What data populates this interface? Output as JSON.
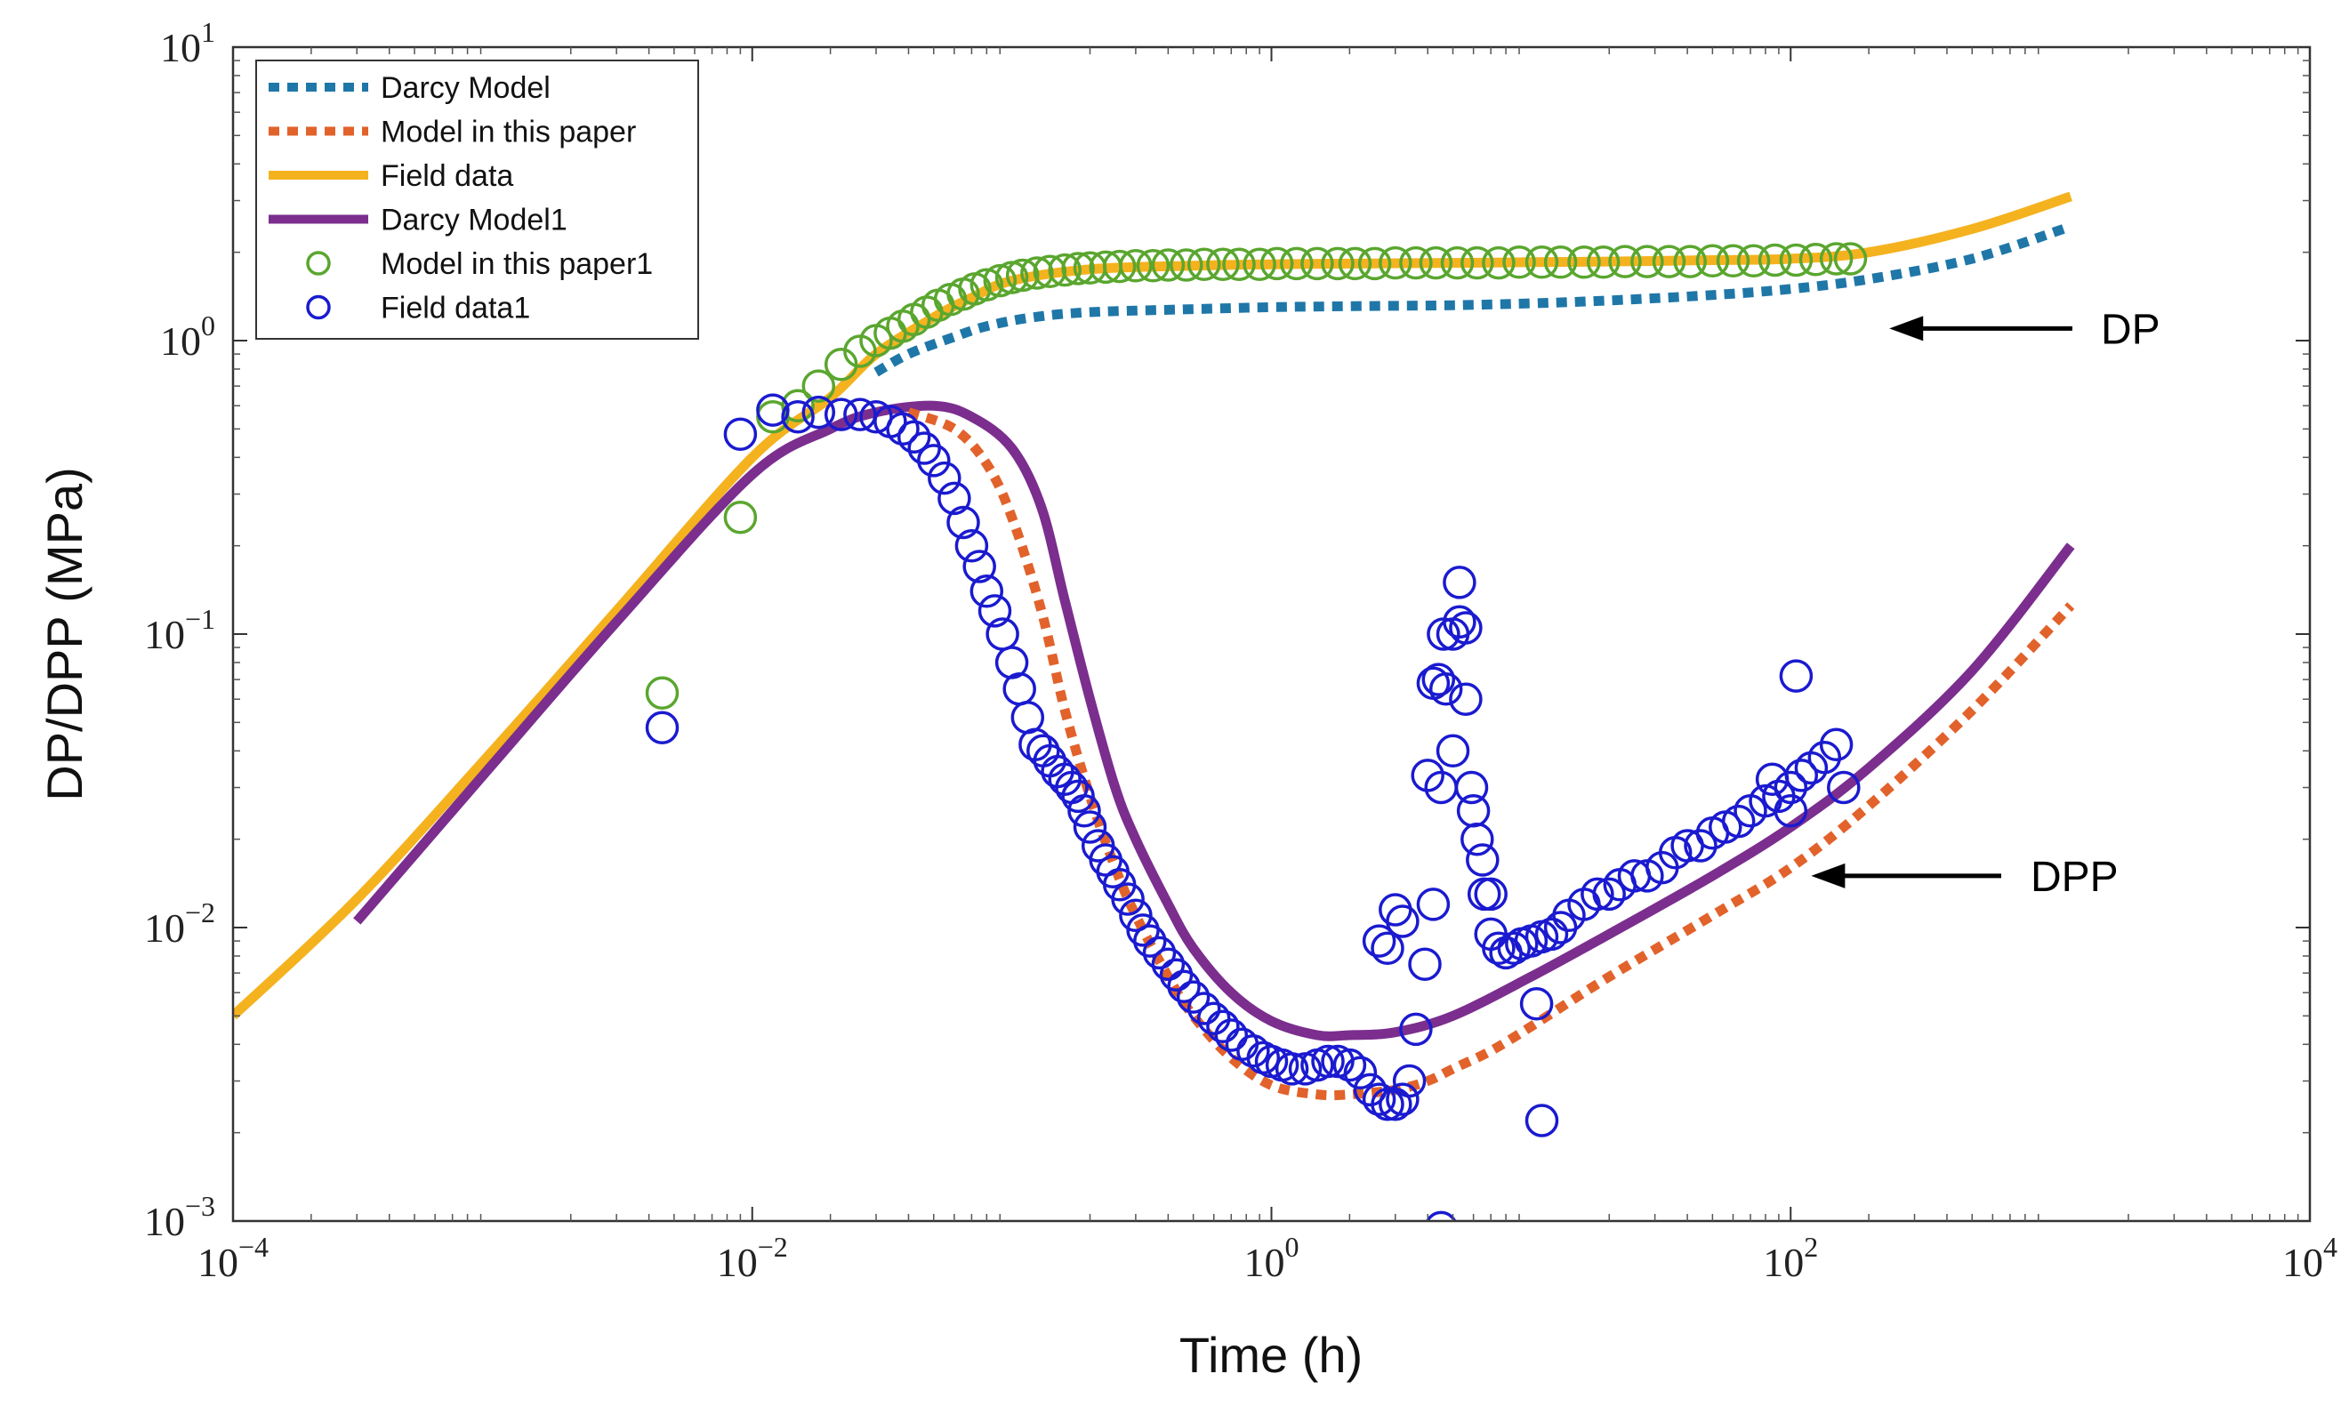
{
  "chart_data": {
    "type": "scatter",
    "title": "",
    "xlabel": "Time (h)",
    "ylabel": "DP/DPP (MPa)",
    "xscale": "log",
    "yscale": "log",
    "xlim": [
      0.0001,
      10000
    ],
    "ylim": [
      0.001,
      10
    ],
    "xticks": [
      {
        "value": 0.0001,
        "base": "10",
        "exp": "−4"
      },
      {
        "value": 0.01,
        "base": "10",
        "exp": "−2"
      },
      {
        "value": 1,
        "base": "10",
        "exp": "0"
      },
      {
        "value": 100,
        "base": "10",
        "exp": "2"
      },
      {
        "value": 10000,
        "base": "10",
        "exp": "4"
      }
    ],
    "yticks": [
      {
        "value": 0.001,
        "base": "10",
        "exp": "−3"
      },
      {
        "value": 0.01,
        "base": "10",
        "exp": "−2"
      },
      {
        "value": 0.1,
        "base": "10",
        "exp": "−1"
      },
      {
        "value": 1,
        "base": "10",
        "exp": "0"
      },
      {
        "value": 10,
        "base": "10",
        "exp": "1"
      }
    ],
    "grid": false,
    "legend_position": "top-left",
    "series": [
      {
        "name": "Darcy Model",
        "kind": "dotted-line",
        "color": "#1f77a8",
        "x": [
          0.03,
          0.04,
          0.06,
          0.08,
          0.12,
          0.2,
          0.5,
          1,
          2,
          5,
          10,
          20,
          50,
          100,
          200,
          500,
          1200
        ],
        "y": [
          0.78,
          0.9,
          1.03,
          1.12,
          1.2,
          1.25,
          1.28,
          1.3,
          1.31,
          1.32,
          1.34,
          1.37,
          1.43,
          1.5,
          1.62,
          1.9,
          2.45
        ]
      },
      {
        "name": "Model in this paper",
        "kind": "dotted-line",
        "color": "#e2622b",
        "x": [
          0.04,
          0.06,
          0.08,
          0.1,
          0.13,
          0.16,
          0.2,
          0.25,
          0.3,
          0.4,
          0.5,
          0.7,
          1,
          1.5,
          2,
          3,
          4,
          5,
          7,
          10,
          20,
          50,
          100,
          200,
          500,
          1200
        ],
        "y": [
          0.57,
          0.5,
          0.38,
          0.25,
          0.12,
          0.055,
          0.028,
          0.016,
          0.011,
          0.0068,
          0.005,
          0.0036,
          0.0029,
          0.0027,
          0.0027,
          0.0028,
          0.003,
          0.0033,
          0.0038,
          0.0046,
          0.0068,
          0.011,
          0.016,
          0.026,
          0.055,
          0.125
        ]
      },
      {
        "name": "Field data",
        "kind": "line",
        "color": "#f5b21f",
        "x": [
          0.0001,
          0.0003,
          0.001,
          0.003,
          0.01,
          0.02,
          0.03,
          0.05,
          0.07,
          0.1,
          0.2,
          0.5,
          1,
          2,
          5,
          10,
          20,
          50,
          100,
          200,
          500,
          1200
        ],
        "y": [
          0.005,
          0.0125,
          0.04,
          0.12,
          0.4,
          0.64,
          0.9,
          1.2,
          1.4,
          1.6,
          1.75,
          1.8,
          1.82,
          1.83,
          1.84,
          1.85,
          1.86,
          1.88,
          1.9,
          2.0,
          2.4,
          3.1
        ]
      },
      {
        "name": "Darcy Model1",
        "kind": "line",
        "color": "#7b2e8e",
        "x": [
          0.0003,
          0.001,
          0.003,
          0.01,
          0.02,
          0.03,
          0.05,
          0.07,
          0.1,
          0.13,
          0.16,
          0.2,
          0.25,
          0.3,
          0.4,
          0.5,
          0.7,
          1,
          1.5,
          2,
          3,
          5,
          10,
          20,
          50,
          100,
          200,
          500,
          1200
        ],
        "y": [
          0.0105,
          0.036,
          0.11,
          0.35,
          0.5,
          0.57,
          0.6,
          0.55,
          0.43,
          0.27,
          0.13,
          0.06,
          0.03,
          0.02,
          0.012,
          0.0085,
          0.006,
          0.0048,
          0.0043,
          0.0043,
          0.0044,
          0.005,
          0.0068,
          0.0095,
          0.015,
          0.022,
          0.035,
          0.075,
          0.2
        ]
      },
      {
        "name": "Model in this paper1",
        "kind": "circles",
        "color": "#5aa62f",
        "x": [
          0.0045,
          0.009,
          0.012,
          0.015,
          0.018,
          0.022,
          0.026,
          0.03,
          0.034,
          0.038,
          0.042,
          0.047,
          0.052,
          0.058,
          0.065,
          0.072,
          0.08,
          0.09,
          0.1,
          0.11,
          0.125,
          0.14,
          0.16,
          0.18,
          0.2,
          0.23,
          0.26,
          0.3,
          0.35,
          0.4,
          0.47,
          0.55,
          0.65,
          0.75,
          0.9,
          1.05,
          1.25,
          1.5,
          1.8,
          2.1,
          2.5,
          3,
          3.6,
          4.3,
          5.2,
          6.2,
          7.5,
          9,
          11,
          13,
          16,
          19,
          23,
          28,
          34,
          41,
          50,
          60,
          72,
          87,
          105,
          125,
          150,
          170
        ],
        "y": [
          0.063,
          0.25,
          0.55,
          0.6,
          0.7,
          0.83,
          0.92,
          1.0,
          1.06,
          1.12,
          1.18,
          1.25,
          1.32,
          1.38,
          1.44,
          1.5,
          1.55,
          1.6,
          1.64,
          1.67,
          1.7,
          1.72,
          1.74,
          1.76,
          1.77,
          1.78,
          1.79,
          1.8,
          1.8,
          1.81,
          1.81,
          1.82,
          1.82,
          1.82,
          1.82,
          1.83,
          1.83,
          1.83,
          1.83,
          1.83,
          1.83,
          1.84,
          1.84,
          1.84,
          1.84,
          1.84,
          1.84,
          1.85,
          1.85,
          1.85,
          1.85,
          1.85,
          1.86,
          1.86,
          1.86,
          1.86,
          1.87,
          1.87,
          1.87,
          1.88,
          1.88,
          1.89,
          1.9,
          1.9
        ]
      },
      {
        "name": "Field data1",
        "kind": "circles",
        "color": "#1a1ad0",
        "x": [
          0.0045,
          0.009,
          0.012,
          0.015,
          0.018,
          0.022,
          0.026,
          0.03,
          0.034,
          0.038,
          0.042,
          0.046,
          0.05,
          0.055,
          0.06,
          0.065,
          0.07,
          0.075,
          0.08,
          0.086,
          0.092,
          0.1,
          0.107,
          0.115,
          0.123,
          0.132,
          0.14,
          0.15,
          0.16,
          0.17,
          0.18,
          0.19,
          0.2,
          0.215,
          0.23,
          0.245,
          0.26,
          0.28,
          0.3,
          0.32,
          0.34,
          0.37,
          0.4,
          0.43,
          0.46,
          0.5,
          0.55,
          0.6,
          0.65,
          0.7,
          0.77,
          0.85,
          0.93,
          1.0,
          1.1,
          1.2,
          1.35,
          1.5,
          1.65,
          1.8,
          2.0,
          2.2,
          2.4,
          2.6,
          2.8,
          3.0,
          3.2,
          3.4,
          3.6,
          3.9,
          4.2,
          4.5,
          4.7,
          5.0,
          5.3,
          5.6,
          5.9,
          6.2,
          6.6,
          7.0,
          7.5,
          8.0,
          8.6,
          9.2,
          10,
          11,
          12,
          13,
          14,
          16,
          18,
          20,
          22,
          25,
          28,
          32,
          36,
          40,
          45,
          50,
          56,
          63,
          70,
          80,
          90,
          100,
          110,
          120,
          135,
          150,
          3.0,
          3.2,
          4.0,
          4.2,
          4.4,
          4.6,
          5.0,
          5.3,
          5.6,
          6.0,
          6.5,
          7.0,
          2.6,
          2.8,
          4.5,
          10.5,
          11,
          85,
          100,
          105,
          160
        ],
        "y": [
          0.048,
          0.48,
          0.58,
          0.55,
          0.57,
          0.56,
          0.56,
          0.55,
          0.53,
          0.5,
          0.47,
          0.43,
          0.39,
          0.34,
          0.29,
          0.24,
          0.2,
          0.17,
          0.14,
          0.12,
          0.1,
          0.08,
          0.065,
          0.052,
          0.042,
          0.04,
          0.037,
          0.034,
          0.032,
          0.03,
          0.028,
          0.025,
          0.022,
          0.019,
          0.017,
          0.0155,
          0.014,
          0.0125,
          0.011,
          0.0098,
          0.009,
          0.0082,
          0.0075,
          0.0069,
          0.0063,
          0.0058,
          0.0053,
          0.0049,
          0.0046,
          0.0043,
          0.004,
          0.0038,
          0.0036,
          0.0035,
          0.0034,
          0.0033,
          0.0033,
          0.0034,
          0.0035,
          0.0035,
          0.0034,
          0.0032,
          0.0028,
          0.0026,
          0.0025,
          0.0025,
          0.0026,
          0.003,
          0.0045,
          0.0075,
          0.012,
          0.03,
          0.065,
          0.1,
          0.11,
          0.06,
          0.03,
          0.02,
          0.013,
          0.0095,
          0.0085,
          0.0082,
          0.0085,
          0.0088,
          0.009,
          0.0093,
          0.0095,
          0.01,
          0.011,
          0.012,
          0.013,
          0.013,
          0.014,
          0.015,
          0.015,
          0.016,
          0.018,
          0.019,
          0.019,
          0.021,
          0.022,
          0.023,
          0.025,
          0.027,
          0.028,
          0.03,
          0.033,
          0.035,
          0.038,
          0.042,
          0.0115,
          0.0105,
          0.033,
          0.068,
          0.07,
          0.1,
          0.04,
          0.15,
          0.105,
          0.025,
          0.017,
          0.013,
          0.009,
          0.0085,
          0.00095,
          0.0055,
          0.0022,
          0.032,
          0.025,
          0.072,
          0.03
        ]
      }
    ],
    "annotations": [
      {
        "text": "DP",
        "arrow_to": {
          "x": 240,
          "y": 1.1
        }
      },
      {
        "text": "DPP",
        "arrow_to": {
          "x": 120,
          "y": 0.015
        }
      }
    ]
  }
}
